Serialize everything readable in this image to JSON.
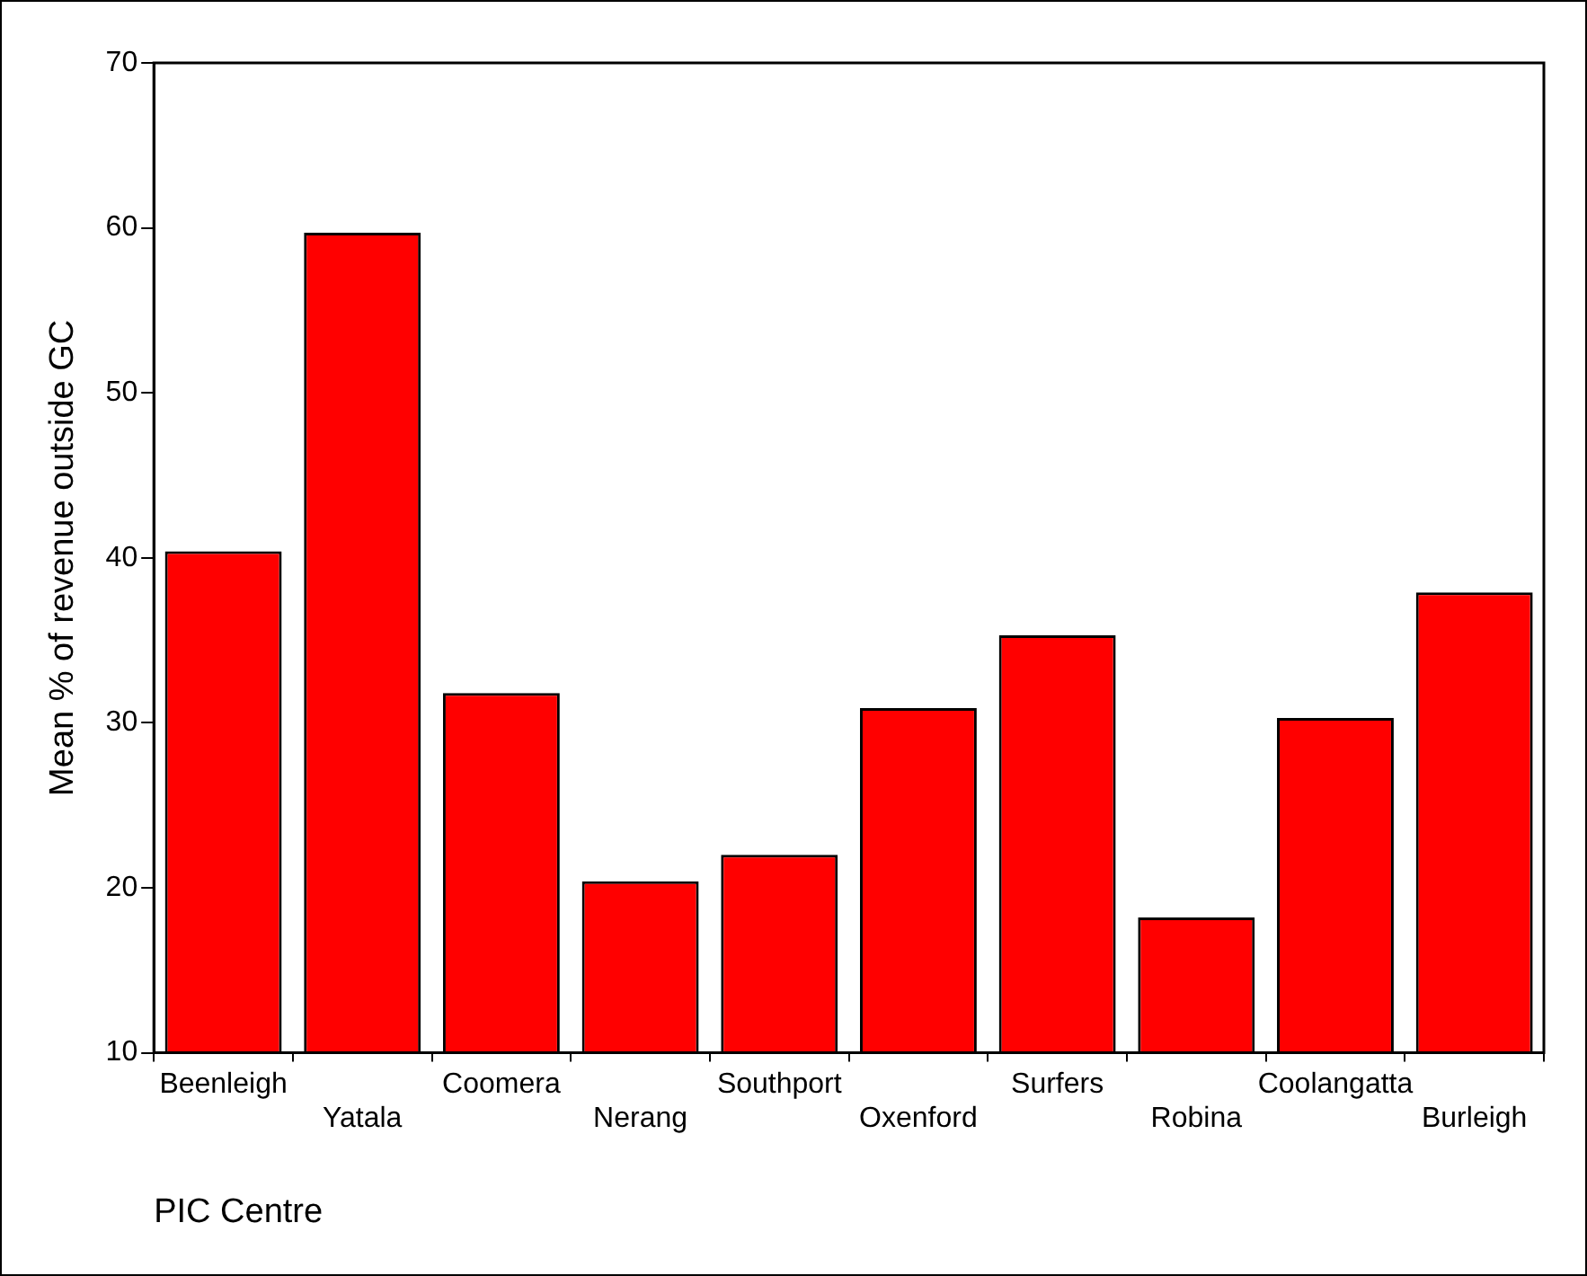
{
  "chart_data": {
    "type": "bar",
    "xlabel": "PIC Centre",
    "ylabel": "Mean % of revenue outside GC",
    "categories": [
      "Beenleigh",
      "Yatala",
      "Coomera",
      "Nerang",
      "Southport",
      "Oxenford",
      "Surfers",
      "Robina",
      "Coolangatta",
      "Burleigh"
    ],
    "values": [
      40.4,
      59.7,
      31.8,
      20.4,
      22.0,
      30.9,
      35.3,
      18.2,
      30.3,
      37.9
    ],
    "color": "#ff0000",
    "ylim": [
      10,
      70
    ],
    "yticks": [
      10,
      20,
      30,
      40,
      50,
      60,
      70
    ],
    "grid": false,
    "legend": false
  }
}
